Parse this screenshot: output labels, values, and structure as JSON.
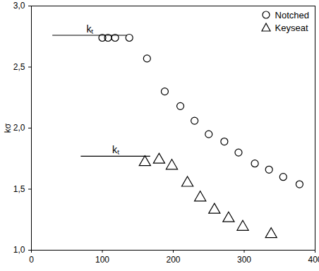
{
  "chart_data": {
    "type": "scatter",
    "y_label": "kσ",
    "xlim": [
      0,
      400
    ],
    "xticks": [
      0,
      100,
      200,
      300,
      400
    ],
    "ylim": [
      1.0,
      3.0
    ],
    "yticks": [
      {
        "value": 1.0,
        "label": "1,0"
      },
      {
        "value": 1.5,
        "label": "1,5"
      },
      {
        "value": 2.0,
        "label": "2,0"
      },
      {
        "value": 2.5,
        "label": "2,5"
      },
      {
        "value": 3.0,
        "label": "3,0"
      }
    ],
    "legend": "top-right",
    "series": [
      {
        "name": "Notched",
        "color": "#000000",
        "marker": "circle",
        "x": [
          100,
          108,
          118,
          138,
          163,
          188,
          210,
          230,
          250,
          272,
          292,
          315,
          335,
          355,
          378
        ],
        "values": [
          2.74,
          2.74,
          2.74,
          2.74,
          2.57,
          2.3,
          2.18,
          2.06,
          1.95,
          1.89,
          1.8,
          1.71,
          1.66,
          1.6,
          1.54
        ]
      },
      {
        "name": "Keyseat",
        "color": "#000000",
        "marker": "triangle",
        "x": [
          160,
          180,
          198,
          220,
          238,
          258,
          278,
          298,
          338
        ],
        "values": [
          1.72,
          1.74,
          1.69,
          1.55,
          1.43,
          1.33,
          1.26,
          1.19,
          1.13
        ]
      }
    ],
    "annotations": [
      {
        "text": "kₜ",
        "x": [
          30,
          135
        ],
        "y": 2.76
      },
      {
        "text": "kₜ",
        "x": [
          70,
          168
        ],
        "y": 1.77
      }
    ]
  }
}
